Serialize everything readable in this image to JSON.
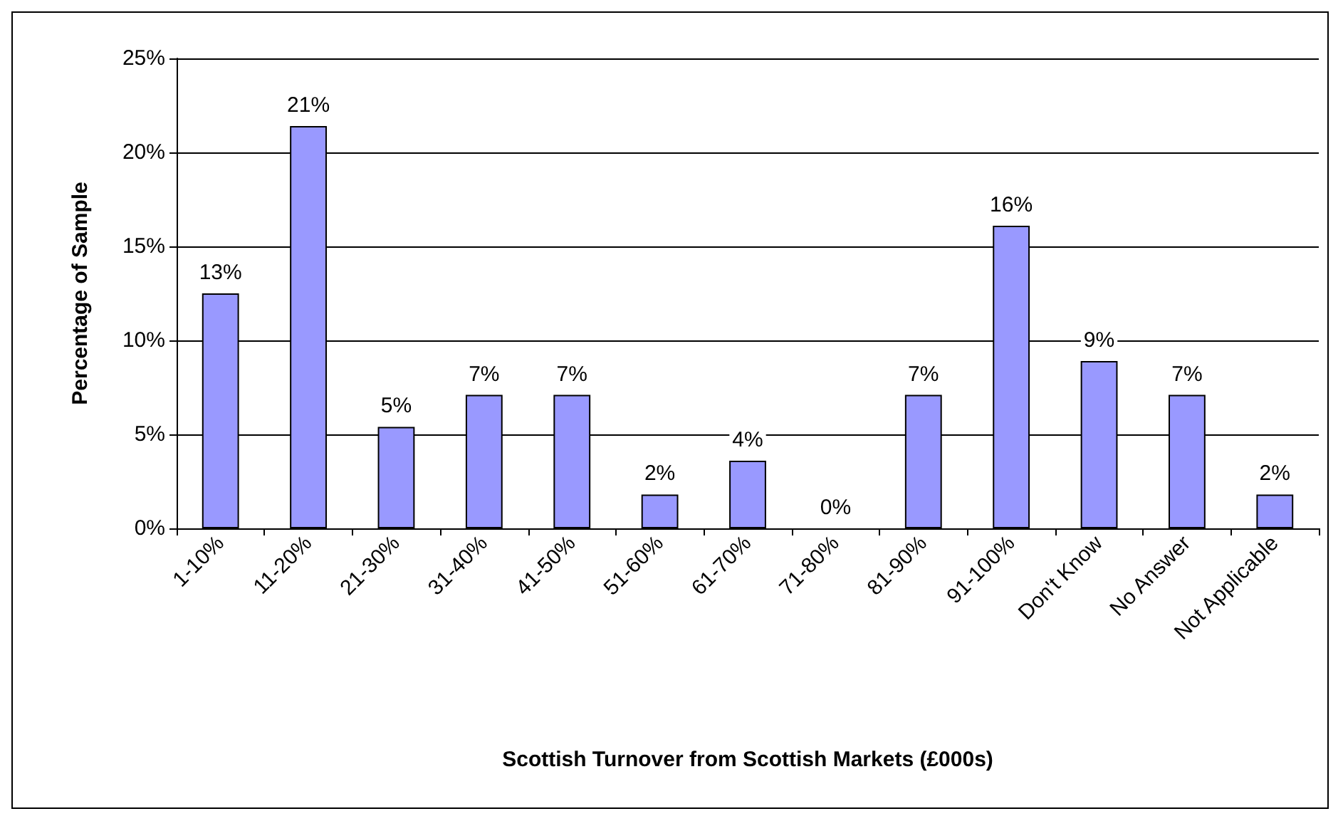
{
  "chart_data": {
    "type": "bar",
    "xlabel": "Scottish Turnover from Scottish Markets (£000s)",
    "ylabel": "Percentage of Sample",
    "categories": [
      "1-10%",
      "11-20%",
      "21-30%",
      "31-40%",
      "41-50%",
      "51-60%",
      "61-70%",
      "71-80%",
      "81-90%",
      "91-100%",
      "Don't Know",
      "No Answer",
      "Not Applicable"
    ],
    "values": [
      12.5,
      21.4,
      5.4,
      7.1,
      7.1,
      1.8,
      3.6,
      0,
      7.1,
      16.1,
      8.9,
      7.1,
      1.8
    ],
    "value_labels": [
      "13%",
      "21%",
      "5%",
      "7%",
      "7%",
      "2%",
      "4%",
      "0%",
      "7%",
      "16%",
      "9%",
      "7%",
      "2%"
    ],
    "color": "#9999ff",
    "ylim": [
      0,
      25
    ],
    "yticks": [
      {
        "value": 0,
        "label": "0%"
      },
      {
        "value": 5,
        "label": "5%"
      },
      {
        "value": 10,
        "label": "10%"
      },
      {
        "value": 15,
        "label": "15%"
      },
      {
        "value": 20,
        "label": "20%"
      },
      {
        "value": 25,
        "label": "25%"
      }
    ],
    "grid": "y"
  }
}
